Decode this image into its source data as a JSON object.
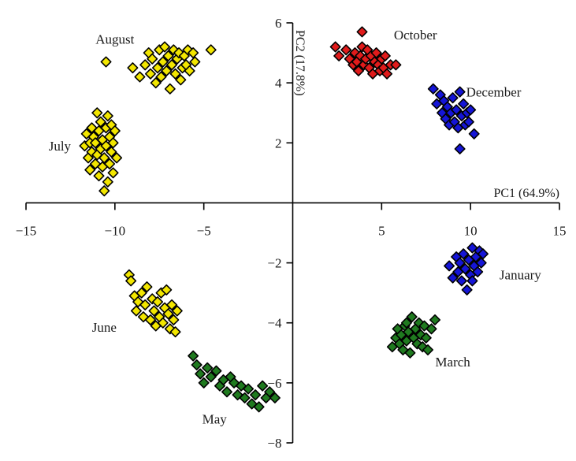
{
  "chart_data": {
    "type": "scatter",
    "title": "",
    "xlabel": "PC1 (64.9%)",
    "ylabel": "PC2 (17.8%)",
    "xlim": [
      -15,
      15
    ],
    "ylim": [
      -8,
      6
    ],
    "xticks": [
      -15,
      -10,
      -5,
      5,
      10,
      15
    ],
    "xtick_labels": [
      "−15",
      "−10",
      "−5",
      "5",
      "10",
      "15"
    ],
    "yticks": [
      6,
      4,
      2,
      -2,
      -4,
      -6,
      -8
    ],
    "ytick_labels": [
      "6",
      "4",
      "2",
      "−2",
      "−4",
      "−6",
      "−8"
    ],
    "grid": false,
    "marker": "diamond",
    "series": [
      {
        "name": "August",
        "color": "#f2e600",
        "points": [
          [
            -10.5,
            4.7
          ],
          [
            -9.0,
            4.5
          ],
          [
            -8.6,
            4.2
          ],
          [
            -8.3,
            4.6
          ],
          [
            -8.1,
            5.0
          ],
          [
            -8.0,
            4.3
          ],
          [
            -7.9,
            4.8
          ],
          [
            -7.7,
            4.0
          ],
          [
            -7.6,
            4.5
          ],
          [
            -7.5,
            5.1
          ],
          [
            -7.4,
            4.2
          ],
          [
            -7.3,
            4.7
          ],
          [
            -7.2,
            5.2
          ],
          [
            -7.1,
            4.4
          ],
          [
            -7.0,
            4.9
          ],
          [
            -6.9,
            3.8
          ],
          [
            -6.8,
            4.6
          ],
          [
            -6.7,
            5.1
          ],
          [
            -6.6,
            4.3
          ],
          [
            -6.5,
            4.8
          ],
          [
            -6.4,
            5.0
          ],
          [
            -6.3,
            4.1
          ],
          [
            -6.2,
            4.5
          ],
          [
            -6.1,
            4.9
          ],
          [
            -6.0,
            4.6
          ],
          [
            -5.9,
            5.1
          ],
          [
            -5.8,
            4.4
          ],
          [
            -5.6,
            5.0
          ],
          [
            -5.5,
            4.7
          ],
          [
            -4.6,
            5.1
          ]
        ]
      },
      {
        "name": "July",
        "color": "#f2e600",
        "points": [
          [
            -11.7,
            1.9
          ],
          [
            -11.6,
            2.3
          ],
          [
            -11.5,
            1.5
          ],
          [
            -11.4,
            2.0
          ],
          [
            -11.4,
            1.1
          ],
          [
            -11.3,
            2.5
          ],
          [
            -11.3,
            1.7
          ],
          [
            -11.2,
            2.2
          ],
          [
            -11.1,
            1.3
          ],
          [
            -11.1,
            2.0
          ],
          [
            -11.0,
            3.0
          ],
          [
            -11.0,
            1.6
          ],
          [
            -10.9,
            2.4
          ],
          [
            -10.9,
            0.9
          ],
          [
            -10.8,
            1.8
          ],
          [
            -10.8,
            2.7
          ],
          [
            -10.7,
            1.2
          ],
          [
            -10.7,
            2.1
          ],
          [
            -10.6,
            0.4
          ],
          [
            -10.6,
            1.5
          ],
          [
            -10.5,
            2.5
          ],
          [
            -10.5,
            1.9
          ],
          [
            -10.4,
            0.7
          ],
          [
            -10.4,
            2.9
          ],
          [
            -10.3,
            1.3
          ],
          [
            -10.3,
            2.2
          ],
          [
            -10.2,
            1.7
          ],
          [
            -10.2,
            2.6
          ],
          [
            -10.1,
            1.0
          ],
          [
            -10.1,
            2.0
          ],
          [
            -10.0,
            2.4
          ],
          [
            -9.9,
            1.5
          ]
        ]
      },
      {
        "name": "June",
        "color": "#f2e600",
        "points": [
          [
            -9.2,
            -2.4
          ],
          [
            -9.1,
            -2.6
          ],
          [
            -8.9,
            -3.1
          ],
          [
            -8.8,
            -3.6
          ],
          [
            -8.7,
            -3.3
          ],
          [
            -8.5,
            -3.0
          ],
          [
            -8.4,
            -3.8
          ],
          [
            -8.3,
            -3.4
          ],
          [
            -8.2,
            -2.8
          ],
          [
            -8.0,
            -3.9
          ],
          [
            -7.9,
            -3.2
          ],
          [
            -7.8,
            -3.6
          ],
          [
            -7.7,
            -4.1
          ],
          [
            -7.6,
            -3.3
          ],
          [
            -7.5,
            -3.8
          ],
          [
            -7.4,
            -3.0
          ],
          [
            -7.3,
            -4.0
          ],
          [
            -7.2,
            -3.5
          ],
          [
            -7.1,
            -2.9
          ],
          [
            -7.0,
            -3.7
          ],
          [
            -6.9,
            -4.2
          ],
          [
            -6.8,
            -3.4
          ],
          [
            -6.7,
            -3.9
          ],
          [
            -6.6,
            -4.3
          ],
          [
            -6.5,
            -3.6
          ]
        ]
      },
      {
        "name": "May",
        "color": "#1f7a1f",
        "points": [
          [
            -5.6,
            -5.1
          ],
          [
            -5.4,
            -5.4
          ],
          [
            -5.2,
            -5.7
          ],
          [
            -5.0,
            -6.0
          ],
          [
            -4.8,
            -5.5
          ],
          [
            -4.6,
            -5.8
          ],
          [
            -4.3,
            -5.6
          ],
          [
            -4.1,
            -6.1
          ],
          [
            -3.9,
            -5.9
          ],
          [
            -3.7,
            -6.3
          ],
          [
            -3.5,
            -5.8
          ],
          [
            -3.3,
            -6.0
          ],
          [
            -3.1,
            -6.4
          ],
          [
            -2.9,
            -6.1
          ],
          [
            -2.7,
            -6.5
          ],
          [
            -2.5,
            -6.2
          ],
          [
            -2.3,
            -6.7
          ],
          [
            -2.1,
            -6.4
          ],
          [
            -1.9,
            -6.8
          ],
          [
            -1.7,
            -6.1
          ],
          [
            -1.5,
            -6.5
          ],
          [
            -1.3,
            -6.3
          ],
          [
            -1.0,
            -6.5
          ]
        ]
      },
      {
        "name": "October",
        "color": "#e01b1b",
        "points": [
          [
            2.4,
            5.2
          ],
          [
            2.6,
            4.9
          ],
          [
            3.0,
            5.1
          ],
          [
            3.2,
            4.8
          ],
          [
            3.4,
            4.6
          ],
          [
            3.5,
            5.0
          ],
          [
            3.6,
            4.7
          ],
          [
            3.7,
            4.4
          ],
          [
            3.8,
            4.9
          ],
          [
            3.9,
            5.2
          ],
          [
            4.0,
            4.6
          ],
          [
            4.1,
            4.8
          ],
          [
            4.2,
            5.1
          ],
          [
            4.3,
            4.5
          ],
          [
            4.4,
            4.9
          ],
          [
            4.5,
            4.3
          ],
          [
            4.6,
            4.7
          ],
          [
            4.7,
            5.0
          ],
          [
            4.8,
            4.6
          ],
          [
            4.9,
            4.4
          ],
          [
            5.0,
            4.8
          ],
          [
            5.1,
            4.5
          ],
          [
            5.2,
            4.9
          ],
          [
            5.3,
            4.3
          ],
          [
            5.5,
            4.6
          ],
          [
            5.8,
            4.6
          ],
          [
            3.9,
            5.7
          ]
        ]
      },
      {
        "name": "December",
        "color": "#1515d6",
        "points": [
          [
            7.9,
            3.8
          ],
          [
            8.1,
            3.3
          ],
          [
            8.3,
            3.6
          ],
          [
            8.4,
            3.0
          ],
          [
            8.5,
            3.4
          ],
          [
            8.6,
            2.8
          ],
          [
            8.7,
            3.2
          ],
          [
            8.8,
            2.6
          ],
          [
            8.9,
            3.0
          ],
          [
            9.0,
            3.5
          ],
          [
            9.1,
            2.7
          ],
          [
            9.2,
            3.1
          ],
          [
            9.3,
            2.5
          ],
          [
            9.4,
            3.7
          ],
          [
            9.5,
            2.9
          ],
          [
            9.6,
            3.3
          ],
          [
            9.7,
            2.6
          ],
          [
            9.8,
            3.0
          ],
          [
            9.9,
            2.7
          ],
          [
            10.0,
            3.1
          ],
          [
            10.2,
            2.3
          ],
          [
            9.4,
            1.8
          ]
        ]
      },
      {
        "name": "January",
        "color": "#1515d6",
        "points": [
          [
            8.8,
            -2.1
          ],
          [
            9.0,
            -2.5
          ],
          [
            9.2,
            -1.8
          ],
          [
            9.3,
            -2.3
          ],
          [
            9.4,
            -2.0
          ],
          [
            9.5,
            -2.6
          ],
          [
            9.6,
            -1.7
          ],
          [
            9.7,
            -2.2
          ],
          [
            9.8,
            -2.9
          ],
          [
            9.9,
            -1.9
          ],
          [
            10.0,
            -2.4
          ],
          [
            10.1,
            -1.5
          ],
          [
            10.2,
            -2.1
          ],
          [
            10.3,
            -1.8
          ],
          [
            10.4,
            -2.3
          ],
          [
            10.5,
            -1.6
          ],
          [
            10.6,
            -2.0
          ],
          [
            10.7,
            -1.7
          ],
          [
            10.1,
            -2.6
          ]
        ]
      },
      {
        "name": "March",
        "color": "#1f7a1f",
        "points": [
          [
            5.6,
            -4.8
          ],
          [
            5.8,
            -4.5
          ],
          [
            5.9,
            -4.2
          ],
          [
            6.0,
            -4.7
          ],
          [
            6.1,
            -4.4
          ],
          [
            6.2,
            -4.9
          ],
          [
            6.3,
            -4.1
          ],
          [
            6.4,
            -4.6
          ],
          [
            6.5,
            -4.3
          ],
          [
            6.6,
            -5.0
          ],
          [
            6.7,
            -3.8
          ],
          [
            6.8,
            -4.5
          ],
          [
            6.9,
            -4.2
          ],
          [
            7.0,
            -4.7
          ],
          [
            7.1,
            -4.0
          ],
          [
            7.2,
            -4.4
          ],
          [
            7.3,
            -4.8
          ],
          [
            7.4,
            -4.1
          ],
          [
            7.5,
            -4.5
          ],
          [
            7.6,
            -4.9
          ],
          [
            7.8,
            -4.2
          ],
          [
            8.0,
            -3.9
          ],
          [
            6.4,
            -4.0
          ]
        ]
      }
    ],
    "annotations": [
      {
        "text": "August",
        "x": -10.0,
        "y": 5.3
      },
      {
        "text": "July",
        "x": -13.1,
        "y": 1.75
      },
      {
        "text": "June",
        "x": -10.6,
        "y": -4.3
      },
      {
        "text": "May",
        "x": -4.4,
        "y": -7.35
      },
      {
        "text": "October",
        "x": 6.9,
        "y": 5.45
      },
      {
        "text": "December",
        "x": 11.3,
        "y": 3.55
      },
      {
        "text": "January",
        "x": 12.8,
        "y": -2.55
      },
      {
        "text": "March",
        "x": 9.0,
        "y": -5.45
      }
    ]
  }
}
